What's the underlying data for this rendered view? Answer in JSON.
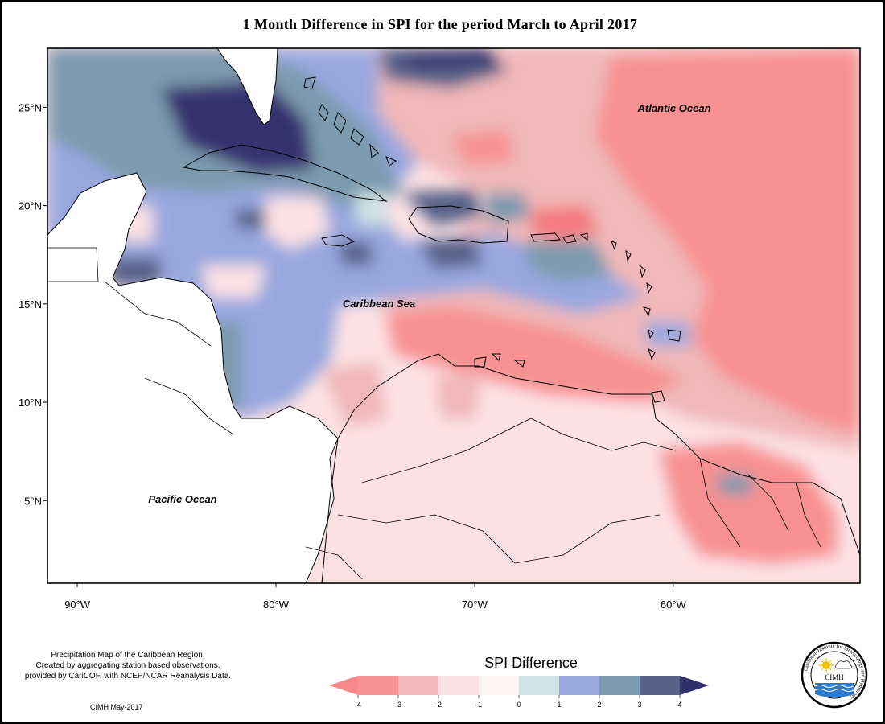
{
  "title": "1 Month Difference in SPI for the period March to April 2017",
  "map": {
    "lon_ticks": [
      {
        "lon": -90,
        "label": "90°W"
      },
      {
        "lon": -80,
        "label": "80°W"
      },
      {
        "lon": -70,
        "label": "70°W"
      },
      {
        "lon": -60,
        "label": "60°W"
      }
    ],
    "lat_ticks": [
      {
        "lat": 25,
        "label": "25°N"
      },
      {
        "lat": 20,
        "label": "20°N"
      },
      {
        "lat": 15,
        "label": "15°N"
      },
      {
        "lat": 10,
        "label": "10°N"
      },
      {
        "lat": 5,
        "label": "5°N"
      }
    ],
    "extent": {
      "lon_min": -91.5,
      "lon_max": -50.6,
      "lat_min": 0.8,
      "lat_max": 28
    }
  },
  "labels": {
    "atlantic": "Atlantic Ocean",
    "caribbean": "Caribbean Sea",
    "pacific": "Pacific Ocean"
  },
  "credits": {
    "line1": "Precipitation Map of the Caribbean Region.",
    "line2": "Created by aggregating station based observations,",
    "line3": "provided by CariCOF, with NCEP/NCAR Reanalysis Data.",
    "date_note": "CIMH May-2017"
  },
  "legend": {
    "title": "SPI Difference",
    "tick_labels": [
      "-4",
      "-3",
      "-2",
      "-1",
      "0",
      "1",
      "2",
      "3",
      "4"
    ],
    "colors": [
      "#f79193",
      "#f0b8b8",
      "#fce1e4",
      "#fff4f4",
      "#cfe2e6",
      "#98a8de",
      "#7d9aae",
      "#576289",
      "#34336e"
    ],
    "under_color": "#f7878a",
    "over_color": "#32306b"
  },
  "logo": {
    "text": "CIMH",
    "ring_text": "Caribbean Institute for Meteorology and Hydrology"
  }
}
